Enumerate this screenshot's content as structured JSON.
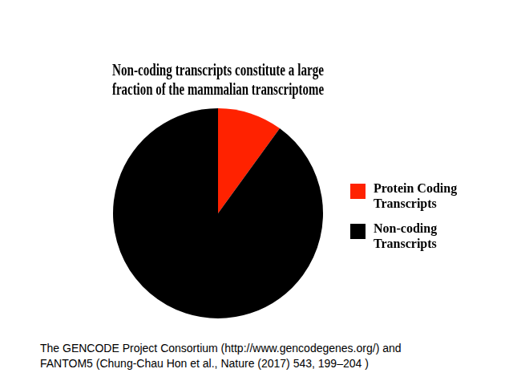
{
  "chart_data": {
    "type": "pie",
    "title": [
      "Non-coding transcripts constitute a large",
      "fraction of the mammalian transcriptome"
    ],
    "categories": [
      "Protein Coding Transcripts",
      "Non-coding Transcripts"
    ],
    "values": [
      10,
      90
    ],
    "colors": [
      "#ff2200",
      "#000000"
    ],
    "legend": "right",
    "source": [
      "The GENCODE Project Consortium (http://www.gencodegenes.org/) and",
      "FANTOM5 (Chung-Chau Hon et al., Nature (2017) 543, 199–204 )"
    ]
  }
}
